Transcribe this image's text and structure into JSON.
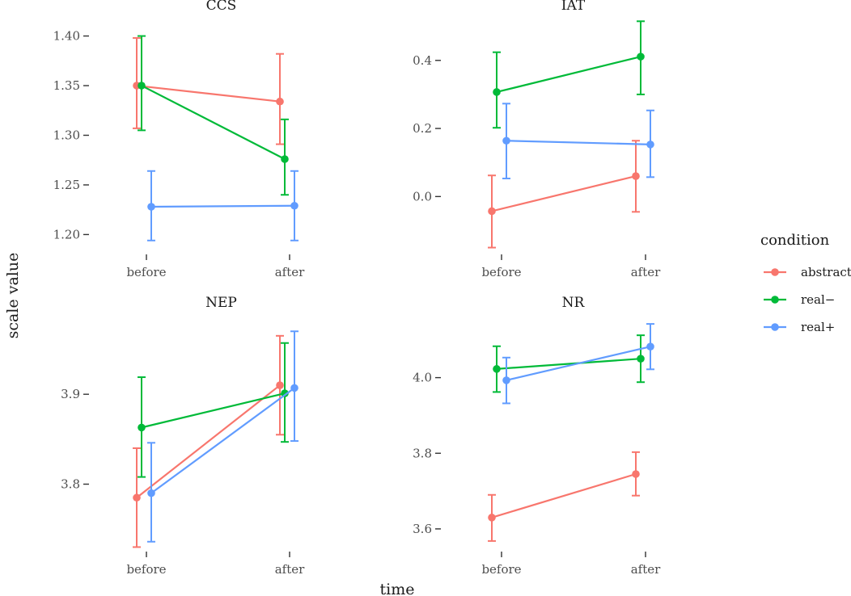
{
  "chart_data": {
    "type": "line",
    "xlabel": "time",
    "ylabel": "scale value",
    "legend": {
      "title": "condition",
      "position": "right",
      "entries": [
        "abstract",
        "real−",
        "real+"
      ]
    },
    "colors": {
      "abstract": "#F8766D",
      "real−": "#00BA38",
      "real+": "#619CFF"
    },
    "categories": [
      "before",
      "after"
    ],
    "panels": [
      {
        "title": "CCS",
        "ylim": [
          1.18,
          1.42
        ],
        "yticks": [
          "1.20",
          "1.25",
          "1.30",
          "1.35",
          "1.40"
        ],
        "series": [
          {
            "name": "abstract",
            "values": [
              1.35,
              1.334
            ],
            "lower": [
              1.307,
              1.291
            ],
            "upper": [
              1.398,
              1.382
            ]
          },
          {
            "name": "real−",
            "values": [
              1.35,
              1.276
            ],
            "lower": [
              1.305,
              1.24
            ],
            "upper": [
              1.4,
              1.316
            ]
          },
          {
            "name": "real+",
            "values": [
              1.228,
              1.229
            ],
            "lower": [
              1.194,
              1.194
            ],
            "upper": [
              1.264,
              1.264
            ]
          }
        ]
      },
      {
        "title": "IAT",
        "ylim": [
          -0.17,
          0.53
        ],
        "yticks": [
          "0.0",
          "0.2",
          "0.4"
        ],
        "series": [
          {
            "name": "abstract",
            "values": [
              -0.043,
              0.06
            ],
            "lower": [
              -0.15,
              -0.045
            ],
            "upper": [
              0.062,
              0.164
            ]
          },
          {
            "name": "real−",
            "values": [
              0.307,
              0.411
            ],
            "lower": [
              0.202,
              0.3
            ],
            "upper": [
              0.424,
              0.515
            ]
          },
          {
            "name": "real+",
            "values": [
              0.164,
              0.153
            ],
            "lower": [
              0.053,
              0.057
            ],
            "upper": [
              0.273,
              0.253
            ]
          }
        ]
      },
      {
        "title": "NEP",
        "ylim": [
          3.725,
          3.99
        ],
        "yticks": [
          "3.8",
          "3.9"
        ],
        "series": [
          {
            "name": "abstract",
            "values": [
              3.785,
              3.91
            ],
            "lower": [
              3.73,
              3.855
            ],
            "upper": [
              3.84,
              3.965
            ]
          },
          {
            "name": "real−",
            "values": [
              3.863,
              3.901
            ],
            "lower": [
              3.808,
              3.847
            ],
            "upper": [
              3.919,
              3.957
            ]
          },
          {
            "name": "real+",
            "values": [
              3.79,
              3.907
            ],
            "lower": [
              3.736,
              3.848
            ],
            "upper": [
              3.846,
              3.97
            ]
          }
        ]
      },
      {
        "title": "NR",
        "ylim": [
          3.54,
          4.17
        ],
        "yticks": [
          "3.6",
          "3.8",
          "4.0"
        ],
        "series": [
          {
            "name": "abstract",
            "values": [
              3.63,
              3.745
            ],
            "lower": [
              3.568,
              3.688
            ],
            "upper": [
              3.69,
              3.803
            ]
          },
          {
            "name": "real−",
            "values": [
              4.023,
              4.05
            ],
            "lower": [
              3.962,
              3.988
            ],
            "upper": [
              4.083,
              4.112
            ]
          },
          {
            "name": "real+",
            "values": [
              3.993,
              4.082
            ],
            "lower": [
              3.932,
              4.022
            ],
            "upper": [
              4.053,
              4.142
            ]
          }
        ]
      }
    ]
  }
}
